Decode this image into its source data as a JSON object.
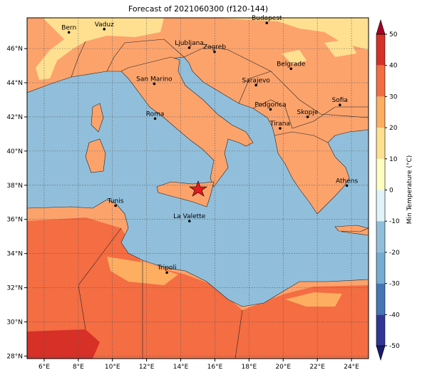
{
  "title": "Forecast of 2021060300 (f120-144)",
  "map": {
    "lonlim": [
      5,
      25
    ],
    "latlim": [
      27.85,
      47.8
    ],
    "lonticks": [
      {
        "value": 6,
        "label": "6°E"
      },
      {
        "value": 8,
        "label": "8°E"
      },
      {
        "value": 10,
        "label": "10°E"
      },
      {
        "value": 12,
        "label": "12°E"
      },
      {
        "value": 14,
        "label": "14°E"
      },
      {
        "value": 16,
        "label": "16°E"
      },
      {
        "value": 18,
        "label": "18°E"
      },
      {
        "value": 20,
        "label": "20°E"
      },
      {
        "value": 22,
        "label": "22°E"
      },
      {
        "value": 24,
        "label": "24°E"
      }
    ],
    "latticks": [
      {
        "value": 28,
        "label": "28°N"
      },
      {
        "value": 30,
        "label": "30°N"
      },
      {
        "value": 32,
        "label": "32°N"
      },
      {
        "value": 34,
        "label": "34°N"
      },
      {
        "value": 36,
        "label": "36°N"
      },
      {
        "value": 38,
        "label": "38°N"
      },
      {
        "value": 40,
        "label": "40°N"
      },
      {
        "value": 42,
        "label": "42°N"
      },
      {
        "value": 44,
        "label": "44°N"
      },
      {
        "value": 46,
        "label": "46°N"
      }
    ],
    "cities": [
      {
        "name": "Bern",
        "lon": 7.45,
        "lat": 46.95
      },
      {
        "name": "Vaduz",
        "lon": 9.52,
        "lat": 47.14
      },
      {
        "name": "Budapest",
        "lon": 19.04,
        "lat": 47.5
      },
      {
        "name": "Ljubljana",
        "lon": 14.5,
        "lat": 46.05
      },
      {
        "name": "Zagreb",
        "lon": 15.98,
        "lat": 45.81
      },
      {
        "name": "Belgrade",
        "lon": 20.46,
        "lat": 44.82
      },
      {
        "name": "San Marino",
        "lon": 12.45,
        "lat": 43.94
      },
      {
        "name": "Sarajevo",
        "lon": 18.41,
        "lat": 43.86
      },
      {
        "name": "Sofia",
        "lon": 23.32,
        "lat": 42.7
      },
      {
        "name": "Roma",
        "lon": 12.5,
        "lat": 41.9
      },
      {
        "name": "Podgorica",
        "lon": 19.26,
        "lat": 42.44
      },
      {
        "name": "Skopje",
        "lon": 21.43,
        "lat": 42.0
      },
      {
        "name": "Tirana",
        "lon": 19.82,
        "lat": 41.33
      },
      {
        "name": "Athens",
        "lon": 23.73,
        "lat": 37.98
      },
      {
        "name": "Tunis",
        "lon": 10.18,
        "lat": 36.8
      },
      {
        "name": "La Valette",
        "lon": 14.51,
        "lat": 35.9
      },
      {
        "name": "Tripoli",
        "lon": 13.19,
        "lat": 32.89
      }
    ]
  },
  "colorbar": {
    "label": "Min Temperature (°C)",
    "lim": [
      -50,
      50
    ],
    "ticks": [
      50,
      40,
      30,
      20,
      10,
      0,
      -10,
      -20,
      -30,
      -40,
      -50
    ],
    "colors": [
      "#313695",
      "#4575b4",
      "#74add1",
      "#91bfdb",
      "#e0f3f8",
      "#ffffbf",
      "#fee090",
      "#fdae61",
      "#f46d43",
      "#d73027"
    ],
    "under_color": "#1a1a6e",
    "over_color": "#a50026"
  }
}
